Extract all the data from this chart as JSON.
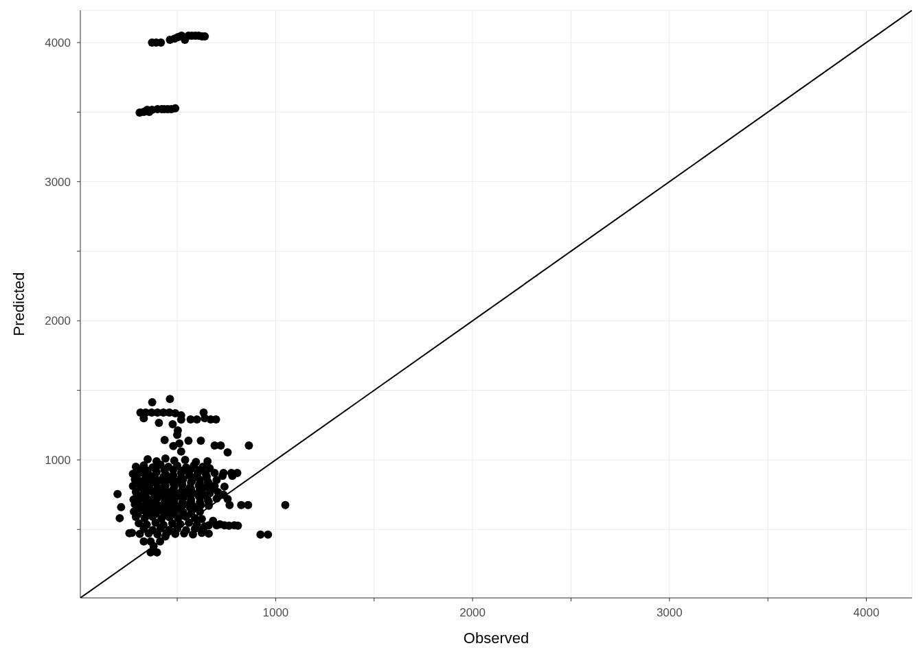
{
  "chart_data": {
    "type": "scatter",
    "xlabel": "Observed",
    "ylabel": "Predicted",
    "xlim": [
      8,
      4232
    ],
    "ylim": [
      8,
      4232
    ],
    "xticks": [
      {
        "value": 500,
        "label": null
      },
      1000,
      {
        "value": 1500,
        "label": null
      },
      2000,
      {
        "value": 2500,
        "label": null
      },
      3000,
      {
        "value": 3500,
        "label": null
      },
      4000
    ],
    "yticks": [
      {
        "value": 500,
        "label": null
      },
      1000,
      {
        "value": 1500,
        "label": null
      },
      2000,
      {
        "value": 2500,
        "label": null
      },
      3000,
      {
        "value": 3500,
        "label": null
      },
      4000
    ],
    "grid": true,
    "series": [
      {
        "color": "#000000",
        "marker": "circle",
        "x": [
          372,
          393,
          417,
          463,
          487,
          504,
          522,
          539,
          557,
          574,
          592,
          609,
          626,
          640,
          309,
          330,
          347,
          358,
          372,
          400,
          421,
          435,
          452,
          470,
          490,
          463,
          373,
          313,
          340,
          370,
          400,
          430,
          460,
          490,
          520,
          568,
          600,
          634,
          640,
          670,
          697,
          330,
          407,
          477,
          503,
          520,
          511,
          436,
          557,
          620,
          690,
          721,
          756,
          864,
          654,
          500,
          520,
          480,
          350,
          395,
          440,
          485,
          540,
          595,
          290,
          330,
          375,
          415,
          455,
          500,
          545,
          585,
          630,
          665,
          275,
          315,
          355,
          395,
          440,
          480,
          520,
          560,
          605,
          645,
          690,
          735,
          775,
          805,
          285,
          325,
          365,
          405,
          450,
          490,
          530,
          575,
          615,
          655,
          700,
          275,
          315,
          360,
          400,
          440,
          485,
          525,
          565,
          610,
          650,
          690,
          740,
          290,
          330,
          370,
          410,
          455,
          495,
          540,
          580,
          625,
          665,
          278,
          320,
          360,
          400,
          445,
          485,
          530,
          570,
          615,
          655,
          700,
          285,
          325,
          365,
          410,
          450,
          495,
          535,
          580,
          620,
          660,
          280,
          320,
          360,
          405,
          445,
          490,
          530,
          575,
          615,
          290,
          335,
          375,
          420,
          460,
          505,
          545,
          590,
          625,
          305,
          345,
          390,
          430,
          475,
          515,
          560,
          600,
          330,
          375,
          415,
          460,
          500,
          545,
          590,
          630,
          270,
          310,
          355,
          400,
          445,
          490,
          535,
          580,
          625,
          660,
          679,
          707,
          735,
          756,
          766,
          825,
          860,
          1049,
          923,
          961,
          640,
          682,
          717,
          763,
          808,
          197,
          215,
          208,
          257,
          330,
          365,
          413,
          365,
          397,
          380,
          440,
          300,
          345,
          390,
          435,
          480,
          525,
          570,
          615,
          295,
          340,
          385,
          430,
          475,
          520,
          565,
          650,
          300,
          345,
          390,
          435,
          480,
          525,
          570,
          615,
          660,
          345,
          435,
          480,
          525,
          570,
          615,
          295,
          340,
          385,
          430,
          475,
          520,
          565,
          610,
          650,
          300,
          345,
          390,
          435,
          480,
          525,
          570,
          615,
          660,
          295,
          340,
          385,
          430,
          475,
          520,
          565,
          610,
          300,
          345,
          390,
          435,
          480,
          525,
          570,
          600,
          730,
          780,
          660,
          700,
          740,
          790
        ],
        "values": [
          4000,
          4000,
          4000,
          4020,
          4029,
          4039,
          4049,
          4020,
          4049,
          4049,
          4049,
          4049,
          4044,
          4044,
          3497,
          3502,
          3517,
          3502,
          3517,
          3522,
          3522,
          3522,
          3522,
          3522,
          3527,
          1438,
          1414,
          1340,
          1340,
          1340,
          1340,
          1340,
          1340,
          1335,
          1320,
          1291,
          1291,
          1340,
          1300,
          1291,
          1291,
          1300,
          1266,
          1256,
          1212,
          1290,
          1118,
          1143,
          1138,
          1138,
          1103,
          1103,
          1054,
          1103,
          990,
          1180,
          1060,
          1100,
          1005,
          990,
          1010,
          995,
          1000,
          985,
          950,
          960,
          945,
          965,
          950,
          958,
          945,
          960,
          950,
          940,
          900,
          910,
          895,
          912,
          900,
          890,
          908,
          898,
          910,
          900,
          906,
          906,
          906,
          906,
          860,
          848,
          862,
          850,
          858,
          845,
          862,
          850,
          858,
          845,
          855,
          812,
          805,
          818,
          800,
          815,
          808,
          820,
          802,
          815,
          805,
          812,
          808,
          770,
          760,
          775,
          758,
          768,
          762,
          775,
          760,
          770,
          760,
          715,
          725,
          712,
          728,
          718,
          710,
          725,
          715,
          728,
          712,
          722,
          680,
          668,
          682,
          670,
          678,
          665,
          680,
          668,
          676,
          670,
          628,
          638,
          625,
          635,
          622,
          632,
          625,
          638,
          628,
          590,
          580,
          592,
          578,
          588,
          580,
          592,
          582,
          575,
          545,
          535,
          548,
          532,
          545,
          538,
          548,
          535,
          505,
          495,
          508,
          498,
          505,
          495,
          505,
          498,
          475,
          468,
          472,
          465,
          475,
          468,
          472,
          465,
          475,
          470,
          793,
          768,
          749,
          719,
          675,
          675,
          675,
          675,
          463,
          463,
          522,
          562,
          537,
          527,
          527,
          754,
          660,
          581,
          473,
          414,
          414,
          414,
          335,
          335,
          380,
          450,
          932,
          925,
          935,
          928,
          930,
          922,
          935,
          928,
          882,
          875,
          885,
          878,
          880,
          872,
          885,
          880,
          835,
          828,
          838,
          830,
          832,
          825,
          838,
          830,
          832,
          782,
          785,
          788,
          780,
          792,
          785,
          745,
          738,
          748,
          740,
          742,
          735,
          748,
          740,
          742,
          700,
          692,
          702,
          695,
          698,
          690,
          702,
          695,
          698,
          655,
          648,
          658,
          650,
          652,
          645,
          658,
          650,
          610,
          602,
          612,
          605,
          608,
          600,
          612,
          885,
          885,
          885,
          530,
          530,
          530,
          530
        ]
      },
      {
        "type": "line",
        "color": "#000000",
        "line_style": "solid",
        "x": [
          8,
          4232
        ],
        "values": [
          8,
          4232
        ]
      }
    ]
  }
}
